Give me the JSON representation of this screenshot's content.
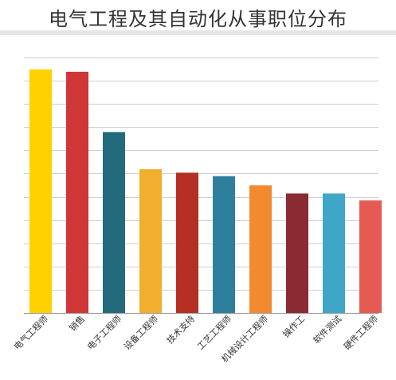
{
  "chart_data": {
    "type": "bar",
    "title": "电气工程及其自动化从事职位分布",
    "xlabel": "",
    "ylabel": "",
    "categories": [
      "电气工程师",
      "销售",
      "电子工程师",
      "设备工程师",
      "技术支持",
      "工艺工程师",
      "机械设计工程师",
      "操作工",
      "软件测试",
      "硬件工程师"
    ],
    "values": [
      10.5,
      10.4,
      7.8,
      6.2,
      6.05,
      5.9,
      5.5,
      5.15,
      5.15,
      4.85
    ],
    "ylim": [
      0,
      10.5
    ],
    "grid": true,
    "colors": [
      "#ffd100",
      "#cf3636",
      "#256a7c",
      "#f2ae2e",
      "#b52e23",
      "#2e7f9b",
      "#f28a30",
      "#8a2b33",
      "#40a6c8",
      "#e55a52"
    ]
  }
}
